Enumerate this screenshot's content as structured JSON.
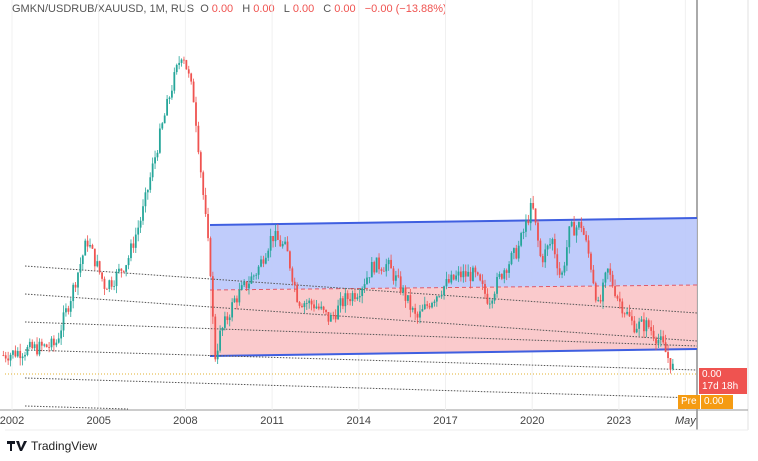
{
  "header": {
    "symbol": "GMKN/USDRUB/XAUUSD, 1M, RUS",
    "open_label": "O",
    "open": "0.00",
    "high_label": "H",
    "high": "0.00",
    "low_label": "L",
    "low": "0.00",
    "close_label": "C",
    "close": "0.00",
    "change": "−0.00 (−13.88%)"
  },
  "price_tags": {
    "last_price": "0.00",
    "countdown": "17d 18h",
    "pre_label": "Pre",
    "pre_price": "0.00"
  },
  "branding": {
    "logo_text": "TradingView"
  },
  "colors": {
    "up": "#26a69a",
    "down": "#ef5350",
    "channel_upper": "#3f5fe0",
    "channel_upper_fill": "#b9c6fb",
    "channel_lower_fill": "#f9c4c6",
    "pre_tag": "#f59b12"
  },
  "chart_data": {
    "type": "candlestick",
    "interval": "1M",
    "x_ticks": [
      "2002",
      "2005",
      "2008",
      "2011",
      "2014",
      "2017",
      "2020",
      "2023",
      "May"
    ],
    "y_axis_labels": "hidden",
    "ylim": [
      0,
      100
    ],
    "grid": true,
    "close_path": [
      [
        2001.7,
        11.8
      ],
      [
        2002.5,
        13.2
      ],
      [
        2003.5,
        14.5
      ],
      [
        2004.0,
        26.3
      ],
      [
        2004.6,
        42.1
      ],
      [
        2005.2,
        30.3
      ],
      [
        2005.5,
        31.6
      ],
      [
        2006.0,
        36.8
      ],
      [
        2006.5,
        48.7
      ],
      [
        2007.0,
        65.8
      ],
      [
        2007.5,
        81.6
      ],
      [
        2007.9,
        92.1
      ],
      [
        2008.3,
        78.9
      ],
      [
        2008.6,
        55.3
      ],
      [
        2008.9,
        31.6
      ],
      [
        2009.0,
        10.5
      ],
      [
        2009.2,
        17.1
      ],
      [
        2009.7,
        26.3
      ],
      [
        2010.5,
        34.2
      ],
      [
        2011.0,
        43.4
      ],
      [
        2011.5,
        39.5
      ],
      [
        2011.9,
        26.3
      ],
      [
        2012.5,
        25.0
      ],
      [
        2013.0,
        21.1
      ],
      [
        2013.5,
        26.3
      ],
      [
        2014.0,
        28.9
      ],
      [
        2014.5,
        35.5
      ],
      [
        2015.0,
        35.5
      ],
      [
        2015.5,
        28.9
      ],
      [
        2016.0,
        21.1
      ],
      [
        2016.5,
        26.3
      ],
      [
        2017.0,
        30.3
      ],
      [
        2017.5,
        32.9
      ],
      [
        2018.0,
        32.9
      ],
      [
        2018.5,
        26.3
      ],
      [
        2019.0,
        34.2
      ],
      [
        2019.5,
        39.5
      ],
      [
        2020.0,
        51.3
      ],
      [
        2020.3,
        36.8
      ],
      [
        2020.7,
        42.1
      ],
      [
        2021.0,
        31.6
      ],
      [
        2021.3,
        44.7
      ],
      [
        2021.7,
        46.1
      ],
      [
        2022.0,
        36.8
      ],
      [
        2022.3,
        23.7
      ],
      [
        2022.6,
        34.2
      ],
      [
        2023.0,
        26.3
      ],
      [
        2023.5,
        19.7
      ],
      [
        2024.0,
        19.7
      ],
      [
        2024.5,
        14.5
      ],
      [
        2024.9,
        7.9
      ]
    ]
  }
}
